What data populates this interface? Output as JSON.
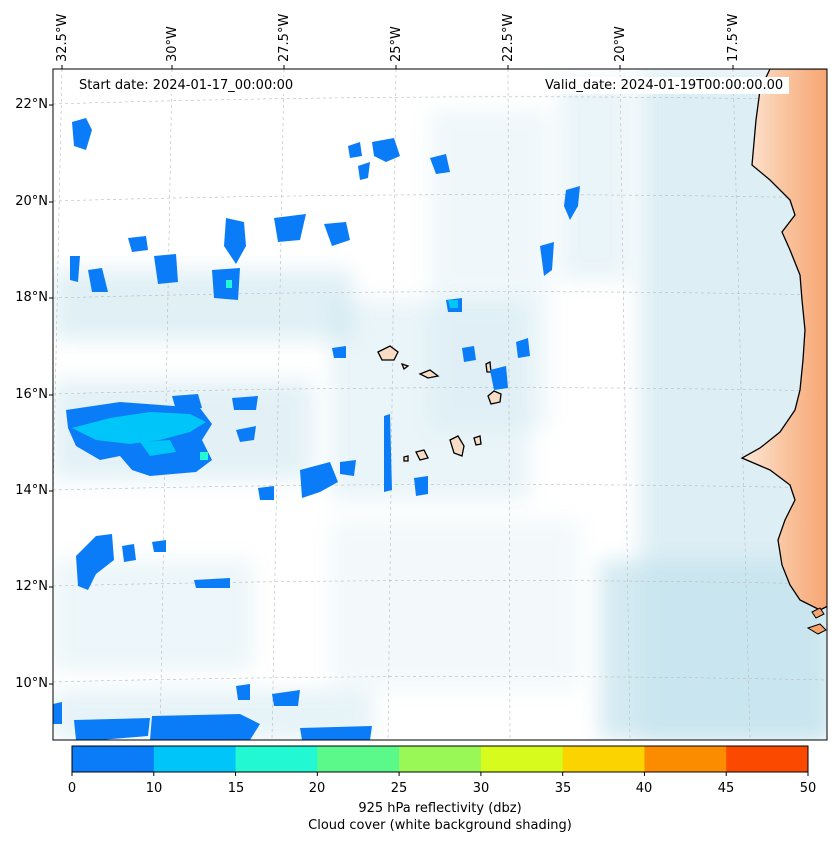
{
  "banner": {
    "start": "Start date: 2024-01-17_00:00:00",
    "valid": "Valid_date: 2024-01-19T00:00:00.00"
  },
  "lon_labels": [
    "32.5°W",
    "30°W",
    "27.5°W",
    "25°W",
    "22.5°W",
    "20°W",
    "17.5°W"
  ],
  "lat_labels": [
    "22°N",
    "20°N",
    "18°N",
    "16°N",
    "14°N",
    "12°N",
    "10°N"
  ],
  "colorbar": {
    "colors": [
      "#0a7cf8",
      "#00c5f8",
      "#22f9d2",
      "#5bf98a",
      "#9af856",
      "#d6fb1c",
      "#fbd400",
      "#fb8c00",
      "#fb4a00"
    ],
    "ticks": [
      "0",
      "10",
      "15",
      "20",
      "25",
      "30",
      "35",
      "40",
      "45",
      "50"
    ],
    "title_line1": "925 hPa reflectivity (dbz)",
    "title_line2": "Cloud cover (white background shading)"
  },
  "colors": {
    "cloud": "#add8e6",
    "land": "#f7c49f",
    "land_edge": "#f9a86f",
    "reflectivity_low": "#0a7cf8",
    "reflectivity_mid": "#00c5f8",
    "reflectivity_high": "#22f9d2"
  }
}
